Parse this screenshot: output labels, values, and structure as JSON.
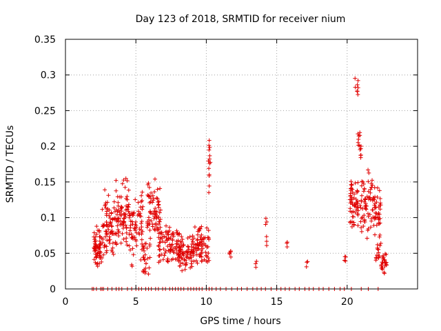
{
  "chart_data": {
    "type": "scatter",
    "title": "Day 123 of 2018, SRMTID for receiver nium",
    "xlabel": "GPS time / hours",
    "ylabel": "SRMTID / TECUs",
    "xlim": [
      0,
      25
    ],
    "ylim": [
      0,
      0.35
    ],
    "xticks": [
      "0",
      "5",
      "10",
      "15",
      "20"
    ],
    "yticks": [
      "0",
      "0.05",
      "0.1",
      "0.15",
      "0.2",
      "0.25",
      "0.3",
      "0.35"
    ],
    "xtick_values": [
      0,
      5,
      10,
      15,
      20
    ],
    "ytick_values": [
      0,
      0.05,
      0.1,
      0.15,
      0.2,
      0.25,
      0.3,
      0.35
    ],
    "grid": true,
    "marker": "+",
    "color": "#e00000",
    "clusters": [
      {
        "x_range": [
          2.0,
          2.6
        ],
        "y_range": [
          0.025,
          0.09
        ],
        "count": 60
      },
      {
        "x_range": [
          2.6,
          3.5
        ],
        "y_range": [
          0.04,
          0.14
        ],
        "count": 70
      },
      {
        "x_range": [
          3.5,
          4.5
        ],
        "y_range": [
          0.05,
          0.16
        ],
        "count": 80
      },
      {
        "x_range": [
          4.5,
          5.5
        ],
        "y_range": [
          0.03,
          0.14
        ],
        "count": 70
      },
      {
        "x_range": [
          5.5,
          6.0
        ],
        "y_range": [
          0.01,
          0.07
        ],
        "count": 25
      },
      {
        "x_range": [
          5.8,
          6.8
        ],
        "y_range": [
          0.05,
          0.16
        ],
        "count": 70
      },
      {
        "x_range": [
          6.6,
          7.4
        ],
        "y_range": [
          0.03,
          0.1
        ],
        "count": 50
      },
      {
        "x_range": [
          7.4,
          8.2
        ],
        "y_range": [
          0.03,
          0.09
        ],
        "count": 50
      },
      {
        "x_range": [
          8.0,
          9.0
        ],
        "y_range": [
          0.02,
          0.08
        ],
        "count": 70
      },
      {
        "x_range": [
          9.0,
          10.2
        ],
        "y_range": [
          0.03,
          0.09
        ],
        "count": 80
      },
      {
        "x_range": [
          10.1,
          10.3
        ],
        "y_range": [
          0.13,
          0.22
        ],
        "count": 14
      },
      {
        "x_range": [
          11.6,
          11.8
        ],
        "y_range": [
          0.03,
          0.065
        ],
        "count": 5
      },
      {
        "x_range": [
          13.5,
          13.6
        ],
        "y_range": [
          0.025,
          0.04
        ],
        "count": 3
      },
      {
        "x_range": [
          14.2,
          14.3
        ],
        "y_range": [
          0.045,
          0.1
        ],
        "count": 6
      },
      {
        "x_range": [
          15.7,
          15.8
        ],
        "y_range": [
          0.05,
          0.075
        ],
        "count": 3
      },
      {
        "x_range": [
          17.1,
          17.2
        ],
        "y_range": [
          0.025,
          0.05
        ],
        "count": 3
      },
      {
        "x_range": [
          19.7,
          19.9
        ],
        "y_range": [
          0.03,
          0.06
        ],
        "count": 4
      },
      {
        "x_range": [
          20.2,
          20.8
        ],
        "y_range": [
          0.08,
          0.16
        ],
        "count": 60
      },
      {
        "x_range": [
          20.5,
          20.8
        ],
        "y_range": [
          0.27,
          0.31
        ],
        "count": 8
      },
      {
        "x_range": [
          20.7,
          21.0
        ],
        "y_range": [
          0.18,
          0.24
        ],
        "count": 14
      },
      {
        "x_range": [
          20.9,
          21.8
        ],
        "y_range": [
          0.07,
          0.17
        ],
        "count": 60
      },
      {
        "x_range": [
          21.8,
          22.4
        ],
        "y_range": [
          0.06,
          0.15
        ],
        "count": 45
      },
      {
        "x_range": [
          22.0,
          22.4
        ],
        "y_range": [
          0.03,
          0.07
        ],
        "count": 14
      },
      {
        "x_range": [
          22.4,
          22.8
        ],
        "y_range": [
          0.02,
          0.06
        ],
        "count": 25
      }
    ],
    "zero_points_x": [
      1.9,
      2.0,
      2.2,
      2.5,
      2.6,
      2.7,
      3.0,
      3.3,
      3.6,
      3.8,
      4.0,
      4.4,
      4.7,
      5.0,
      5.2,
      5.4,
      5.7,
      5.9,
      6.1,
      6.4,
      6.6,
      6.9,
      7.1,
      7.4,
      7.6,
      7.8,
      8.0,
      8.2,
      8.4,
      8.7,
      8.9,
      9.1,
      9.3,
      9.5,
      9.7,
      10.0,
      10.2,
      10.4,
      10.7,
      11.0,
      11.4,
      11.8,
      12.2,
      12.5,
      12.9,
      13.3,
      13.6,
      13.9,
      14.2,
      14.6,
      15.0,
      15.3,
      15.6,
      15.9,
      16.3,
      16.6,
      17.0,
      17.3,
      17.6,
      18.0,
      18.3,
      18.7,
      19.1,
      19.5,
      19.8,
      20.3,
      21.0,
      21.5,
      22.2
    ]
  }
}
